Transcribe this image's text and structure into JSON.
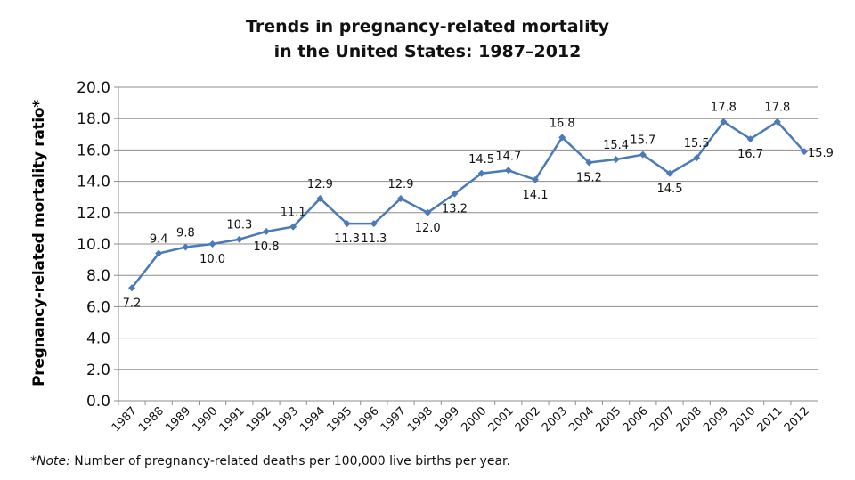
{
  "chart_data": {
    "type": "line",
    "title_line1": "Trends in pregnancy-related mortality",
    "title_line2": "in the United States: 1987–2012",
    "xlabel": "",
    "ylabel": "Pregnancy-related mortality ratio*",
    "ylim": [
      0,
      20
    ],
    "ytick_step": 2,
    "grid": true,
    "legend": "none",
    "line_color": "#4a7ab8",
    "categories": [
      "1987",
      "1988",
      "1989",
      "1990",
      "1991",
      "1992",
      "1993",
      "1994",
      "1995",
      "1996",
      "1997",
      "1998",
      "1999",
      "2000",
      "2001",
      "2002",
      "2003",
      "2004",
      "2005",
      "2006",
      "2007",
      "2008",
      "2009",
      "2010",
      "2011",
      "2012"
    ],
    "values": [
      7.2,
      9.4,
      9.8,
      10.0,
      10.3,
      10.8,
      11.1,
      12.9,
      11.3,
      11.3,
      12.9,
      12.0,
      13.2,
      14.5,
      14.7,
      14.1,
      16.8,
      15.2,
      15.4,
      15.7,
      14.5,
      15.5,
      17.8,
      16.7,
      17.8,
      15.9
    ],
    "label_position": [
      "below",
      "above",
      "above",
      "below",
      "above",
      "below",
      "above",
      "above",
      "below",
      "below",
      "above",
      "below",
      "below",
      "above",
      "above",
      "below",
      "above",
      "below",
      "above",
      "above",
      "below",
      "above",
      "above",
      "below",
      "above",
      "right"
    ]
  },
  "footnote": {
    "marker": "*",
    "label": "Note:",
    "text": " Number of pregnancy-related deaths per 100,000 live births per year."
  }
}
